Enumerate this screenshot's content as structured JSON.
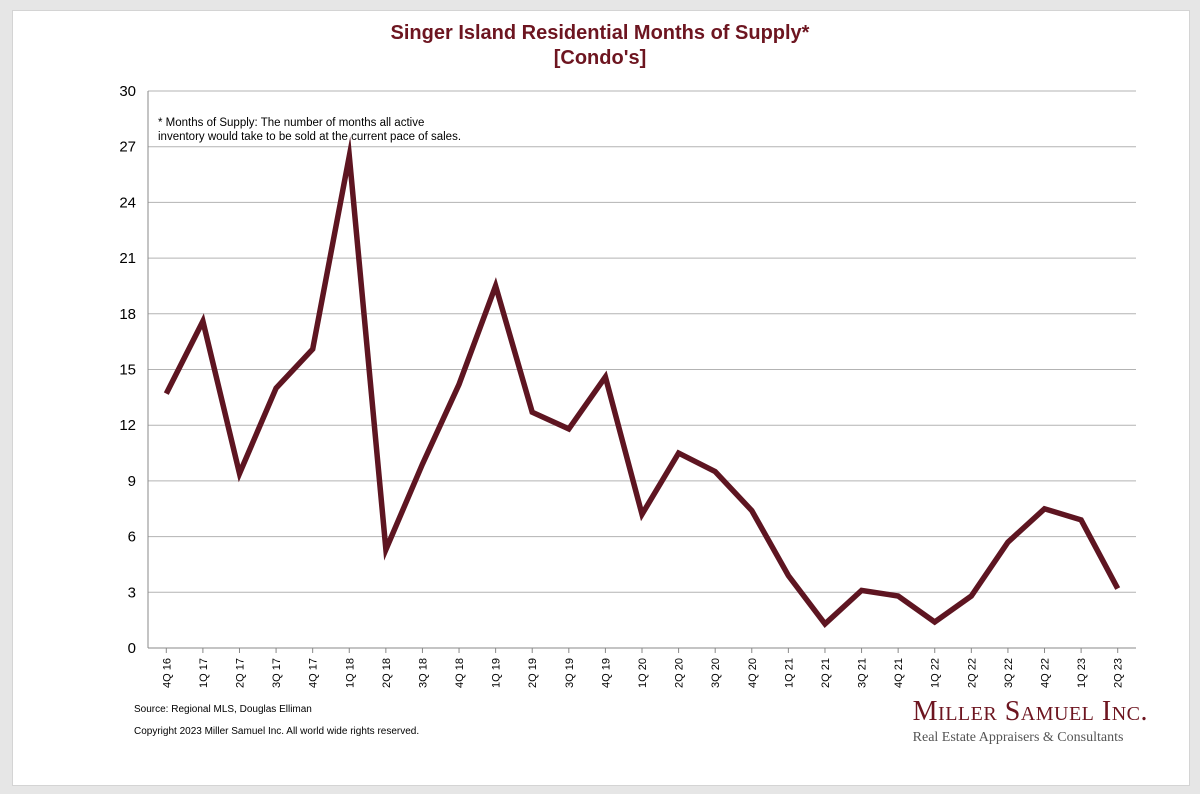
{
  "chart_data": {
    "type": "line",
    "title": "Singer Island Residential Months of Supply*",
    "subtitle": "[Condo's]",
    "note_lines": [
      "* Months of Supply: The number of months all active",
      "inventory would take to be sold at the current pace of sales."
    ],
    "xlabel": "",
    "ylabel": "",
    "ylim": [
      0,
      30
    ],
    "yticks": [
      0,
      3,
      6,
      9,
      12,
      15,
      18,
      21,
      24,
      27,
      30
    ],
    "grid": true,
    "categories": [
      "4Q 16",
      "1Q 17",
      "2Q 17",
      "3Q 17",
      "4Q 17",
      "1Q 18",
      "2Q 18",
      "3Q 18",
      "4Q 18",
      "1Q 19",
      "2Q 19",
      "3Q 19",
      "4Q 19",
      "1Q 20",
      "2Q 20",
      "3Q 20",
      "4Q 20",
      "1Q 21",
      "2Q 21",
      "3Q 21",
      "4Q 21",
      "1Q 22",
      "2Q 22",
      "3Q 22",
      "4Q 22",
      "1Q 23",
      "2Q 23"
    ],
    "series": [
      {
        "values": [
          13.7,
          17.6,
          9.4,
          14.0,
          16.1,
          26.5,
          5.3,
          9.9,
          14.2,
          19.5,
          12.7,
          11.8,
          14.6,
          7.2,
          10.5,
          9.5,
          7.4,
          3.9,
          1.3,
          3.1,
          2.8,
          1.4,
          2.8,
          5.7,
          7.5,
          6.9,
          3.2
        ],
        "color": "#5e1521"
      }
    ],
    "colors": {
      "line": "#5e1521",
      "title": "#6d1520",
      "grid": "#b3b3b3"
    }
  },
  "footer": {
    "source": "Source: Regional MLS, Douglas Elliman",
    "copyright": "Copyright 2023 Miller Samuel Inc.  All world wide rights reserved."
  },
  "brand": {
    "name": "Miller Samuel Inc.",
    "tagline": "Real Estate Appraisers & Consultants"
  }
}
